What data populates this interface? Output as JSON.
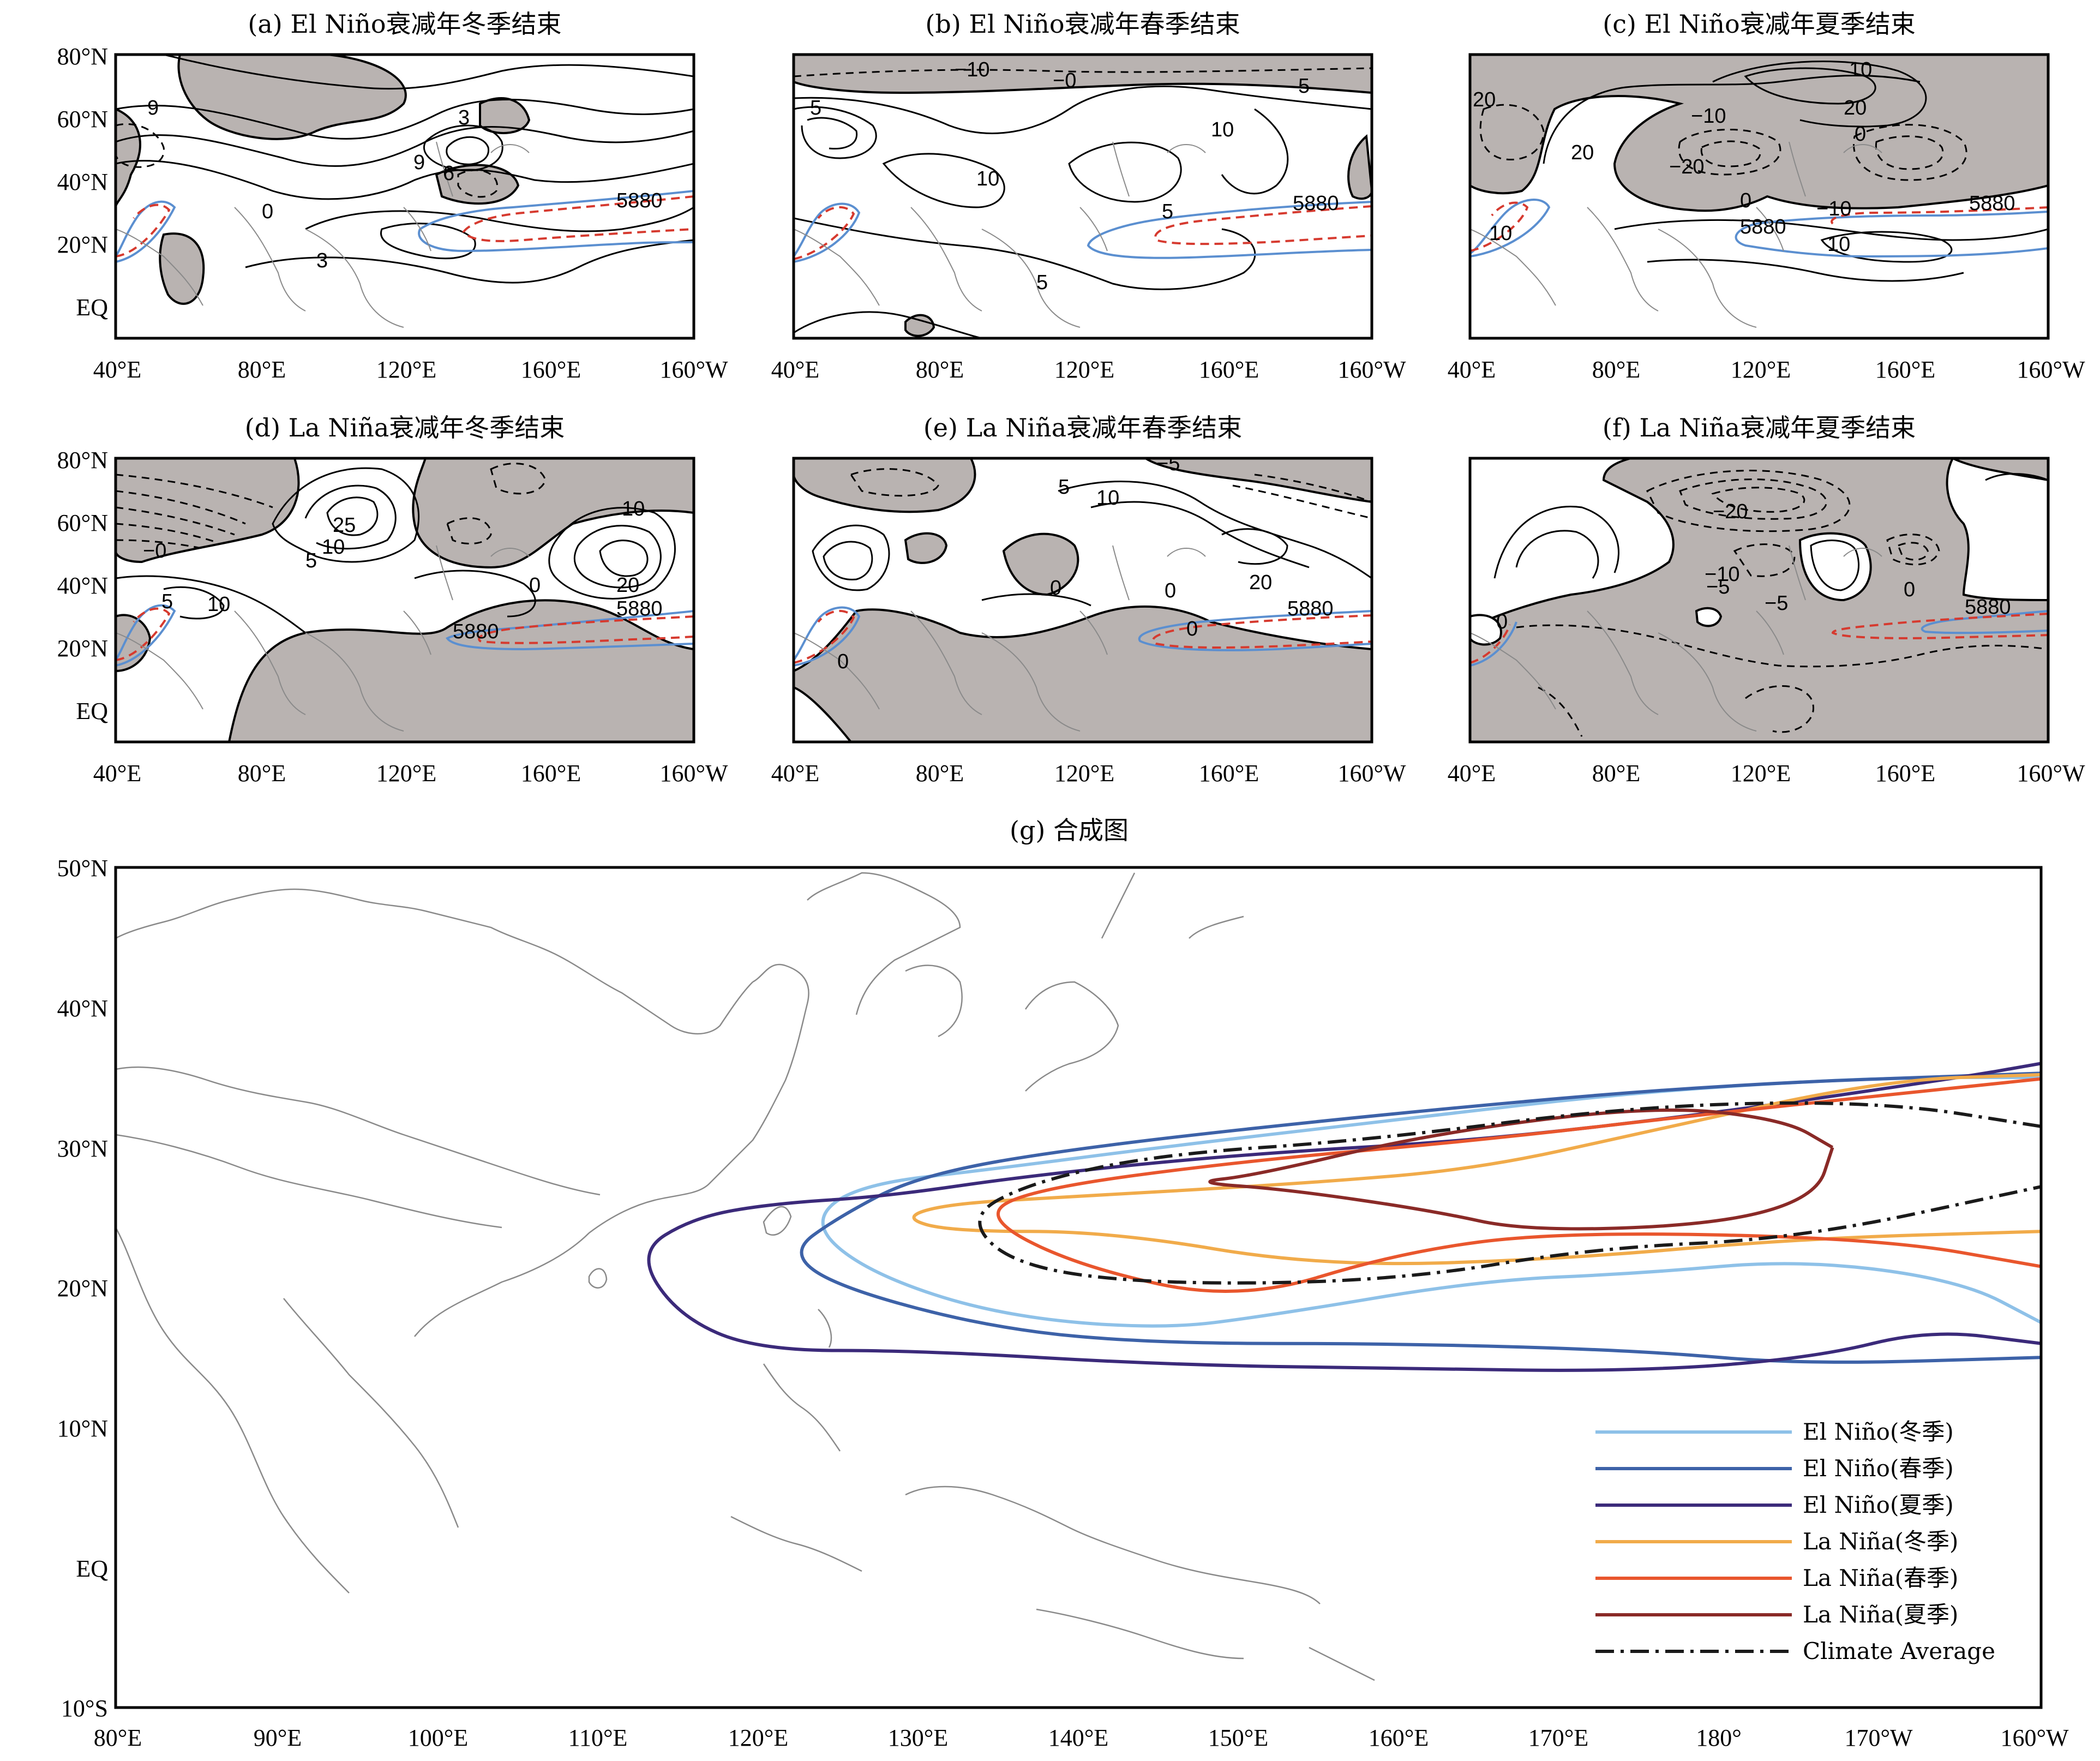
{
  "colors": {
    "shade": "#b9b3b1",
    "blue_5880": "#5b8fd0",
    "red_5880": "#d63a2f",
    "coast": "#8a8a8a",
    "el_winter": "#8ec1e8",
    "el_spring": "#3d62a8",
    "el_summer": "#3b2a7a",
    "la_winter": "#f1ab4a",
    "la_spring": "#e9562d",
    "la_summer": "#8a2a27",
    "climate": "#1a1a1a"
  },
  "small_axes": {
    "x_ticks": [
      "40°E",
      "80°E",
      "120°E",
      "160°E",
      "160°W"
    ],
    "y_ticks": [
      "80°N",
      "60°N",
      "40°N",
      "20°N",
      "EQ"
    ]
  },
  "panels": [
    {
      "id": "a",
      "title": "(a) El Niño衰减年冬季结束",
      "labels": [
        {
          "t": "9"
        },
        {
          "t": "3"
        },
        {
          "t": "9"
        },
        {
          "t": "6"
        },
        {
          "t": "0"
        },
        {
          "t": "3"
        },
        {
          "t": "5880",
          "c": "red"
        }
      ]
    },
    {
      "id": "b",
      "title": "(b) El Niño衰减年春季结束",
      "labels": [
        {
          "t": "−10"
        },
        {
          "t": "−0"
        },
        {
          "t": "5"
        },
        {
          "t": "5"
        },
        {
          "t": "10"
        },
        {
          "t": "10"
        },
        {
          "t": "5"
        },
        {
          "t": "5"
        },
        {
          "t": "5880",
          "c": "red"
        }
      ]
    },
    {
      "id": "c",
      "title": "(c) El Niño衰减年夏季结束",
      "labels": [
        {
          "t": "10"
        },
        {
          "t": "20"
        },
        {
          "t": "20"
        },
        {
          "t": "−10"
        },
        {
          "t": "0"
        },
        {
          "t": "20"
        },
        {
          "t": "−20"
        },
        {
          "t": "0"
        },
        {
          "t": "−10"
        },
        {
          "t": "10"
        },
        {
          "t": "10"
        },
        {
          "t": "5880",
          "c": "red"
        },
        {
          "t": "5880",
          "c": "blue"
        }
      ]
    },
    {
      "id": "d",
      "title": "(d) La Niña衰减年冬季结束",
      "labels": [
        {
          "t": "25"
        },
        {
          "t": "10"
        },
        {
          "t": "5"
        },
        {
          "t": "10"
        },
        {
          "t": "−0"
        },
        {
          "t": "5"
        },
        {
          "t": "10"
        },
        {
          "t": "0"
        },
        {
          "t": "20"
        },
        {
          "t": "5880",
          "c": "red"
        },
        {
          "t": "5880",
          "c": "blue"
        }
      ]
    },
    {
      "id": "e",
      "title": "(e) La Niña衰减年春季结束",
      "labels": [
        {
          "t": "−5"
        },
        {
          "t": "5"
        },
        {
          "t": "10"
        },
        {
          "t": "0"
        },
        {
          "t": "0"
        },
        {
          "t": "20"
        },
        {
          "t": "0"
        },
        {
          "t": "0"
        },
        {
          "t": "5880",
          "c": "red"
        }
      ]
    },
    {
      "id": "f",
      "title": "(f) La Niña衰减年夏季结束",
      "labels": [
        {
          "t": "−20"
        },
        {
          "t": "−10"
        },
        {
          "t": "−5"
        },
        {
          "t": "0"
        },
        {
          "t": "−5"
        },
        {
          "t": "0"
        },
        {
          "t": "5880",
          "c": "red"
        }
      ]
    }
  ],
  "main": {
    "title": "(g) 合成图",
    "x_ticks": [
      "80°E",
      "90°E",
      "100°E",
      "110°E",
      "120°E",
      "130°E",
      "140°E",
      "150°E",
      "160°E",
      "170°E",
      "180°",
      "170°W",
      "160°W"
    ],
    "y_ticks": [
      "50°N",
      "40°N",
      "30°N",
      "20°N",
      "10°N",
      "EQ",
      "10°S"
    ]
  },
  "legend": [
    {
      "label": "El Niño(冬季)",
      "color": "#8ec1e8",
      "dash": ""
    },
    {
      "label": "El Niño(春季)",
      "color": "#3d62a8",
      "dash": ""
    },
    {
      "label": "El Niño(夏季)",
      "color": "#3b2a7a",
      "dash": ""
    },
    {
      "label": "La Niña(冬季)",
      "color": "#f1ab4a",
      "dash": ""
    },
    {
      "label": "La Niña(春季)",
      "color": "#e9562d",
      "dash": ""
    },
    {
      "label": "La Niña(夏季)",
      "color": "#8a2a27",
      "dash": ""
    },
    {
      "label": "Climate Average",
      "color": "#1a1a1a",
      "dash": "34 12 6 12"
    }
  ],
  "chart_data": {
    "type": "line",
    "title": "(g) 合成图",
    "description_units": "contour outlines of the 5880 gpm isoline, lon (°E, 360-based) / lat (°N)",
    "xlim": [
      80,
      200
    ],
    "ylim": [
      -10,
      50
    ],
    "series": [
      {
        "name": "El Niño(冬季)",
        "points": [
          [
            200,
            17.5
          ],
          [
            195,
            20.5
          ],
          [
            185,
            22
          ],
          [
            175,
            21
          ],
          [
            165,
            20.5
          ],
          [
            152,
            18
          ],
          [
            145,
            17
          ],
          [
            135,
            18
          ],
          [
            127,
            21
          ],
          [
            123.3,
            24.5
          ],
          [
            126,
            27.3
          ],
          [
            135,
            28.5
          ],
          [
            145,
            30
          ],
          [
            160,
            32
          ],
          [
            175,
            34
          ],
          [
            190,
            35
          ],
          [
            200,
            35
          ]
        ]
      },
      {
        "name": "El Niño(春季)",
        "points": [
          [
            200,
            15
          ],
          [
            185,
            14.5
          ],
          [
            175,
            15.5
          ],
          [
            160,
            16
          ],
          [
            145,
            16
          ],
          [
            135,
            17
          ],
          [
            125,
            20
          ],
          [
            122,
            22.5
          ],
          [
            125,
            25
          ],
          [
            130,
            28
          ],
          [
            140,
            30
          ],
          [
            160,
            32.5
          ],
          [
            180,
            34.5
          ],
          [
            200,
            35.3
          ]
        ]
      },
      {
        "name": "El Niño(夏季)",
        "points": [
          [
            200,
            16
          ],
          [
            193,
            17
          ],
          [
            186,
            15
          ],
          [
            175,
            14
          ],
          [
            160,
            14.2
          ],
          [
            145,
            14.5
          ],
          [
            130,
            15.5
          ],
          [
            120,
            15.5
          ],
          [
            115,
            18
          ],
          [
            112.5,
            22.5
          ],
          [
            116,
            25
          ],
          [
            121,
            26
          ],
          [
            128,
            26.5
          ],
          [
            137,
            28
          ],
          [
            150,
            29.5
          ],
          [
            165,
            30.5
          ],
          [
            180,
            32.5
          ],
          [
            195,
            35
          ],
          [
            200,
            36
          ]
        ]
      },
      {
        "name": "La Niña(冬季)",
        "points": [
          [
            200,
            24
          ],
          [
            185,
            23.5
          ],
          [
            170,
            22
          ],
          [
            155,
            21.5
          ],
          [
            142,
            24
          ],
          [
            132,
            24
          ],
          [
            129,
            25
          ],
          [
            132,
            26
          ],
          [
            140,
            26.5
          ],
          [
            155,
            27.5
          ],
          [
            165,
            28.5
          ],
          [
            175,
            31
          ],
          [
            190,
            34.8
          ],
          [
            200,
            35.2
          ]
        ]
      },
      {
        "name": "La Niña(春季)",
        "points": [
          [
            200,
            21.5
          ],
          [
            190,
            23.5
          ],
          [
            170,
            24
          ],
          [
            160,
            22.5
          ],
          [
            150,
            19
          ],
          [
            140,
            21.5
          ],
          [
            134,
            25
          ],
          [
            137,
            27
          ],
          [
            150,
            29
          ],
          [
            165,
            30.5
          ],
          [
            180,
            32.5
          ],
          [
            200,
            34.9
          ]
        ]
      },
      {
        "name": "La Niña(夏季)",
        "points": [
          [
            187,
            30
          ],
          [
            184,
            32
          ],
          [
            176,
            33
          ],
          [
            162,
            31
          ],
          [
            151,
            28
          ],
          [
            147,
            27.5
          ],
          [
            153,
            27
          ],
          [
            162,
            25.5
          ],
          [
            168,
            24
          ],
          [
            180,
            24.5
          ],
          [
            186,
            26.5
          ],
          [
            187,
            30
          ]
        ]
      },
      {
        "name": "Climate Average",
        "points": [
          [
            200,
            31.5
          ],
          [
            190,
            33.3
          ],
          [
            175,
            33
          ],
          [
            158,
            30.5
          ],
          [
            145,
            29.5
          ],
          [
            137,
            27.5
          ],
          [
            133,
            25
          ],
          [
            136,
            21.5
          ],
          [
            145,
            20.2
          ],
          [
            160,
            20.5
          ],
          [
            172,
            22.8
          ],
          [
            185,
            23.5
          ],
          [
            200,
            27.2
          ]
        ]
      }
    ]
  }
}
